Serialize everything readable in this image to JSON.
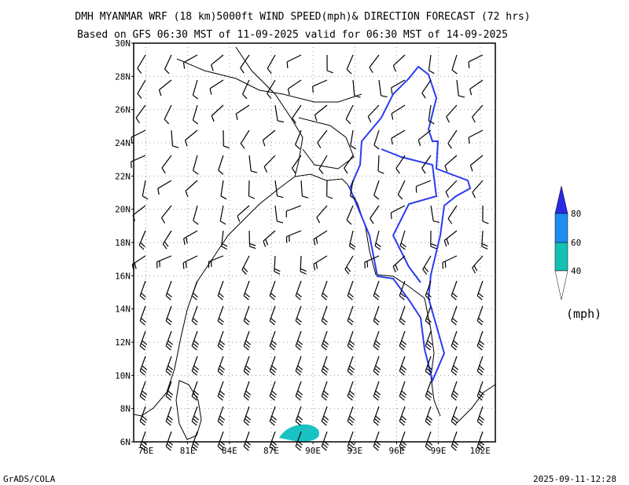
{
  "header": {
    "title": "DMH MYANMAR WRF (18 km)5000ft WIND SPEED(mph)& DIRECTION FORECAST (72 hrs)",
    "subtitle": "Based on GFS 06:30 MST of 11-09-2025 valid for 06:30 MST of 14-09-2025"
  },
  "map": {
    "lat_labels": [
      "30N",
      "28N",
      "26N",
      "24N",
      "22N",
      "20N",
      "18N",
      "16N",
      "14N",
      "12N",
      "10N",
      "8N",
      "6N"
    ],
    "lon_labels": [
      "78E",
      "81E",
      "84E",
      "87E",
      "90E",
      "93E",
      "96E",
      "99E",
      "102E"
    ]
  },
  "legend": {
    "labels": [
      "80",
      "60",
      "40"
    ],
    "unit": "(mph)"
  },
  "footer": {
    "left": "GrADS/COLA",
    "right": "2025-09-11-12:28"
  }
}
